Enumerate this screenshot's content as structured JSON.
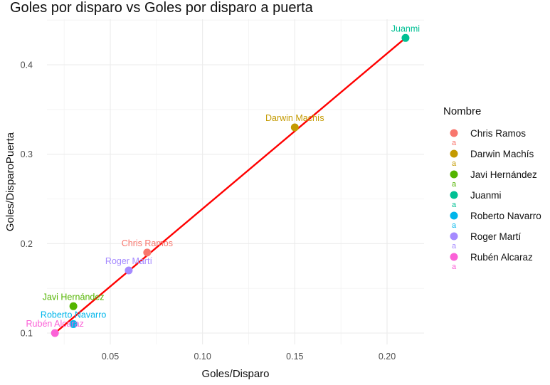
{
  "chart_data": {
    "type": "scatter",
    "title": "Goles por disparo vs Goles por disparo a puerta",
    "xlabel": "Goles/Disparo",
    "ylabel": "Goles/DisparoPuerta",
    "xlim": [
      0.013,
      0.217
    ],
    "ylim": [
      0.08,
      0.44
    ],
    "x_ticks": [
      0.05,
      0.1,
      0.15,
      0.2
    ],
    "x_tick_labels": [
      "0.05",
      "0.10",
      "0.15",
      "0.20"
    ],
    "y_ticks": [
      0.1,
      0.2,
      0.3,
      0.4
    ],
    "y_tick_labels": [
      "0.1",
      "0.2",
      "0.3",
      "0.4"
    ],
    "grid": true,
    "legend_title": "Nombre",
    "legend_position": "right",
    "legend_key_glyph": "a",
    "points": [
      {
        "name": "Chris Ramos",
        "x": 0.07,
        "y": 0.19,
        "color": "#F8766D"
      },
      {
        "name": "Darwin Machís",
        "x": 0.15,
        "y": 0.33,
        "color": "#C49A00"
      },
      {
        "name": "Javi Hernández",
        "x": 0.03,
        "y": 0.13,
        "color": "#53B400"
      },
      {
        "name": "Juanmi",
        "x": 0.21,
        "y": 0.43,
        "color": "#00C094"
      },
      {
        "name": "Roberto Navarro",
        "x": 0.03,
        "y": 0.11,
        "color": "#00B6EB"
      },
      {
        "name": "Roger Martí",
        "x": 0.06,
        "y": 0.17,
        "color": "#A58AFF"
      },
      {
        "name": "Rubén Alcaraz",
        "x": 0.02,
        "y": 0.1,
        "color": "#FB61D7"
      }
    ],
    "trend_line": {
      "x": [
        0.02,
        0.21
      ],
      "y": [
        0.1,
        0.43
      ],
      "color": "#FF0000"
    }
  }
}
